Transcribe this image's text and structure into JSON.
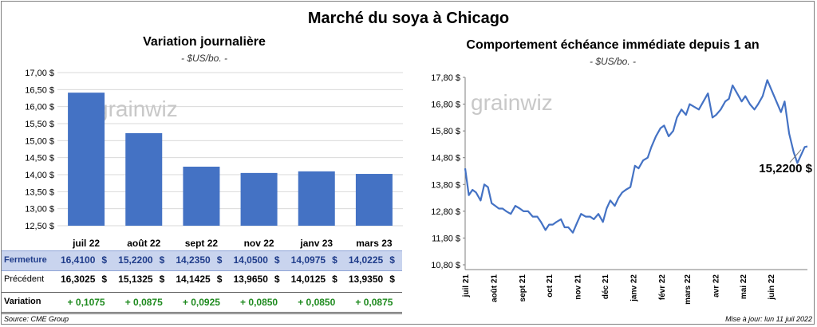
{
  "title": "Marché du soya à Chicago",
  "left_panel": {
    "title": "Variation  journalière",
    "unit": "- $US/bo. -",
    "watermark": "grainwiz"
  },
  "right_panel": {
    "title": "Comportement  échéance immédiate depuis 1 an",
    "unit": "- $US/bo. -",
    "watermark": "grainwiz",
    "last_value_label": "15,2200 $"
  },
  "table": {
    "rows": {
      "fermeture": "Fermeture",
      "precedent": "Précédent",
      "variation": "Variation"
    },
    "fermeture": [
      "16,4100",
      "15,2200",
      "14,2350",
      "14,0500",
      "14,0975",
      "14,0225"
    ],
    "precedent": [
      "16,3025",
      "15,1325",
      "14,1425",
      "13,9650",
      "14,0125",
      "13,9350"
    ],
    "variation": [
      "+ 0,1075",
      "+ 0,0875",
      "+ 0,0925",
      "+ 0,0850",
      "+ 0,0850",
      "+ 0,0875"
    ],
    "currency": "$"
  },
  "footer": {
    "source": "Source: CME Group",
    "update": "Mise à jour: lun 11 juil 2022"
  },
  "colors": {
    "bar": "#4472c4",
    "line": "#4472c4",
    "positive": "#1e8a1e",
    "grid": "#d9d9d9"
  },
  "chart_data": [
    {
      "type": "bar",
      "title": "Variation  journalière",
      "ylabel": "- $US/bo. -",
      "categories": [
        "juil 22",
        "août 22",
        "sept 22",
        "nov 22",
        "janv 23",
        "mars 23"
      ],
      "values": [
        16.41,
        15.22,
        14.235,
        14.05,
        14.0975,
        14.0225
      ],
      "ylim": [
        12.5,
        17.0
      ],
      "yticks": [
        12.5,
        13.0,
        13.5,
        14.0,
        14.5,
        15.0,
        15.5,
        16.0,
        16.5,
        17.0
      ],
      "ytick_labels": [
        "12,50 $",
        "13,00 $",
        "13,50 $",
        "14,00 $",
        "14,50 $",
        "15,00 $",
        "15,50 $",
        "16,00 $",
        "16,50 $",
        "17,00 $"
      ],
      "grid": true
    },
    {
      "type": "line",
      "title": "Comportement  échéance immédiate depuis 1 an",
      "ylabel": "- $US/bo. -",
      "ylim": [
        10.8,
        17.8
      ],
      "yticks": [
        10.8,
        11.8,
        12.8,
        13.8,
        14.8,
        15.8,
        16.8,
        17.8
      ],
      "ytick_labels": [
        "10,80 $",
        "11,80 $",
        "12,80 $",
        "13,80 $",
        "14,80 $",
        "15,80 $",
        "16,80 $",
        "17,80 $"
      ],
      "xlim": [
        "2021-07-01",
        "2022-07-11"
      ],
      "xtick_labels": [
        "juil 21",
        "août 21",
        "sept 21",
        "oct 21",
        "nov 21",
        "déc 21",
        "janv 22",
        "févr 22",
        "mars 22",
        "avr 22",
        "mai 22",
        "juin 22"
      ],
      "xticks": [
        "2021-07-01",
        "2021-08-01",
        "2021-09-01",
        "2021-10-01",
        "2021-11-01",
        "2021-12-01",
        "2022-01-01",
        "2022-02-01",
        "2022-03-01",
        "2022-04-01",
        "2022-05-01",
        "2022-06-01"
      ],
      "grid": false,
      "series": [
        {
          "x": [
            "2021-07-01",
            "2021-07-05",
            "2021-07-09",
            "2021-07-13",
            "2021-07-18",
            "2021-07-22",
            "2021-07-26",
            "2021-07-30",
            "2021-08-03",
            "2021-08-07",
            "2021-08-11",
            "2021-08-15",
            "2021-08-20",
            "2021-08-25",
            "2021-08-30",
            "2021-09-03",
            "2021-09-08",
            "2021-09-13",
            "2021-09-18",
            "2021-09-22",
            "2021-09-27",
            "2021-10-01",
            "2021-10-05",
            "2021-10-09",
            "2021-10-14",
            "2021-10-18",
            "2021-10-22",
            "2021-10-27",
            "2021-11-01",
            "2021-11-05",
            "2021-11-10",
            "2021-11-15",
            "2021-11-19",
            "2021-11-24",
            "2021-11-29",
            "2021-12-03",
            "2021-12-07",
            "2021-12-12",
            "2021-12-16",
            "2021-12-20",
            "2021-12-24",
            "2021-12-29",
            "2022-01-03",
            "2022-01-07",
            "2022-01-12",
            "2022-01-17",
            "2022-01-21",
            "2022-01-26",
            "2022-01-31",
            "2022-02-04",
            "2022-02-09",
            "2022-02-14",
            "2022-02-18",
            "2022-02-23",
            "2022-02-28",
            "2022-03-04",
            "2022-03-09",
            "2022-03-14",
            "2022-03-19",
            "2022-03-24",
            "2022-03-29",
            "2022-04-02",
            "2022-04-07",
            "2022-04-12",
            "2022-04-16",
            "2022-04-20",
            "2022-04-25",
            "2022-04-30",
            "2022-05-04",
            "2022-05-09",
            "2022-05-14",
            "2022-05-18",
            "2022-05-23",
            "2022-05-28",
            "2022-06-02",
            "2022-06-07",
            "2022-06-12",
            "2022-06-16",
            "2022-06-21",
            "2022-06-26",
            "2022-06-30",
            "2022-07-04",
            "2022-07-08",
            "2022-07-11"
          ],
          "y": [
            14.4,
            13.4,
            13.6,
            13.5,
            13.2,
            13.8,
            13.7,
            13.1,
            13.0,
            12.9,
            12.9,
            12.8,
            12.7,
            13.0,
            12.9,
            12.8,
            12.8,
            12.6,
            12.6,
            12.4,
            12.1,
            12.3,
            12.3,
            12.4,
            12.5,
            12.2,
            12.2,
            12.0,
            12.4,
            12.7,
            12.6,
            12.6,
            12.5,
            12.7,
            12.4,
            12.9,
            13.2,
            13.0,
            13.3,
            13.5,
            13.6,
            13.7,
            14.5,
            14.4,
            14.7,
            14.8,
            15.2,
            15.6,
            15.9,
            16.0,
            15.6,
            15.8,
            16.3,
            16.6,
            16.4,
            16.8,
            16.7,
            16.6,
            16.9,
            17.2,
            16.3,
            16.4,
            16.6,
            16.9,
            17.0,
            17.5,
            17.2,
            16.9,
            17.1,
            16.8,
            16.6,
            16.8,
            17.1,
            17.7,
            17.3,
            16.9,
            16.5,
            16.9,
            15.7,
            15.0,
            14.6,
            14.9,
            15.2,
            15.22
          ]
        }
      ]
    }
  ]
}
